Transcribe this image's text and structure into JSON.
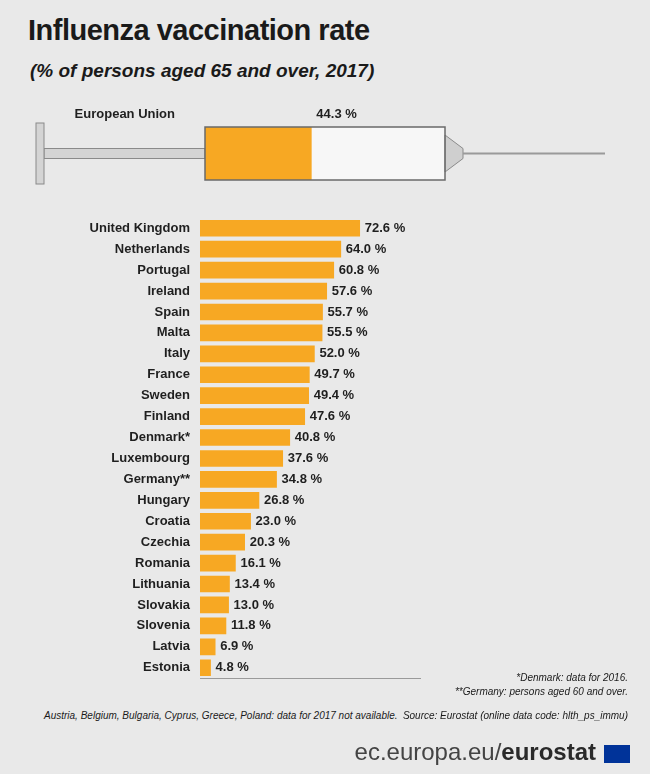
{
  "header": {
    "title": "Influenza vaccination rate",
    "subtitle": "(% of persons aged 65 and over, 2017)"
  },
  "chart_data": [
    {
      "type": "bar",
      "orientation": "horizontal",
      "categories": [
        "European Union"
      ],
      "values": [
        44.3
      ],
      "value_labels": [
        "44.3 %"
      ],
      "color": "#f7a823",
      "xlim": [
        0,
        100
      ],
      "data_labels": true,
      "tick_labels": false,
      "grid": false
    },
    {
      "type": "bar",
      "orientation": "horizontal",
      "categories": [
        "United Kingdom",
        "Netherlands",
        "Portugal",
        "Ireland",
        "Spain",
        "Malta",
        "Italy",
        "France",
        "Sweden",
        "Finland",
        "Denmark*",
        "Luxembourg",
        "Germany**",
        "Hungary",
        "Croatia",
        "Czechia",
        "Romania",
        "Lithuania",
        "Slovakia",
        "Slovenia",
        "Latvia",
        "Estonia"
      ],
      "values": [
        72.6,
        64.0,
        60.8,
        57.6,
        55.7,
        55.5,
        52.0,
        49.7,
        49.4,
        47.6,
        40.8,
        37.6,
        34.8,
        26.8,
        23.0,
        20.3,
        16.1,
        13.4,
        13.0,
        11.8,
        6.9,
        4.8
      ],
      "value_labels": [
        "72.6 %",
        "64.0 %",
        "60.8 %",
        "57.6 %",
        "55.7 %",
        "55.5 %",
        "52.0 %",
        "49.7 %",
        "49.4 %",
        "47.6 %",
        "40.8 %",
        "37.6 %",
        "34.8 %",
        "26.8 %",
        "23.0 %",
        "20.3 %",
        "16.1 %",
        "13.4 %",
        "13.0 %",
        "11.8 %",
        "6.9 %",
        "4.8 %"
      ],
      "color": "#f7a823",
      "xlim": [
        0,
        100
      ],
      "data_labels": true,
      "tick_labels": "y",
      "grid": false
    }
  ],
  "notes": {
    "footnotes": [
      "*Denmark: data for 2016.",
      "**Germany: persons aged 60 and over."
    ],
    "missing": "Austria, Belgium, Bulgaria, Cyprus, Greece, Poland: data for 2017 not available.",
    "source": "Source: Eurostat (online data code: hlth_ps_immu)"
  },
  "footer": {
    "site": "ec.europa.eu/",
    "brand": "eurostat"
  }
}
